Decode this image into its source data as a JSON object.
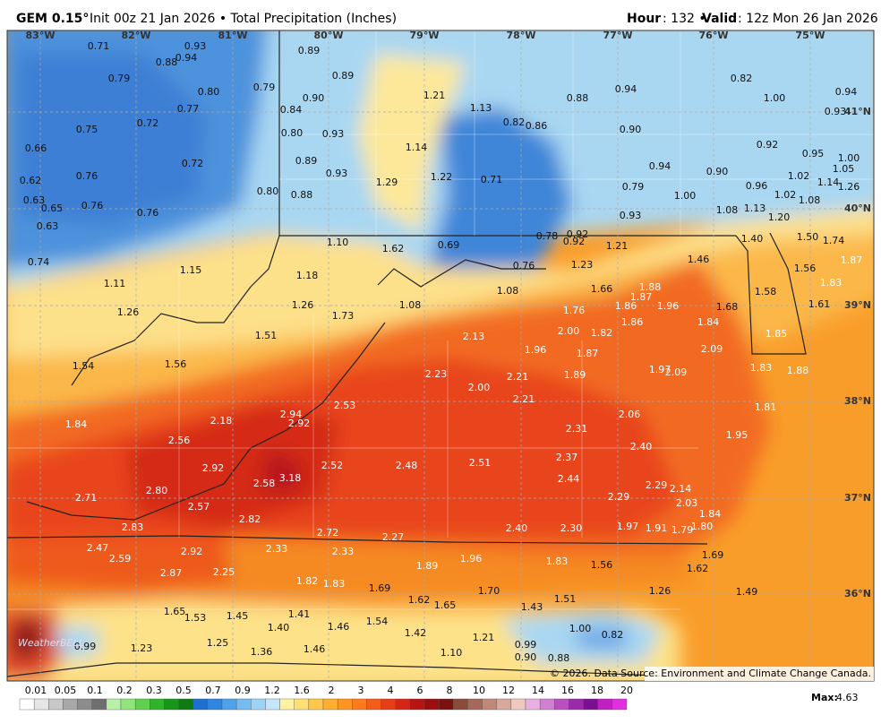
{
  "header": {
    "model": "GEM 0.15°",
    "title": "Init 00z 21 Jan 2026 • Total Precipitation (Inches)",
    "hour_label": "Hour",
    "hour_value": ": 132 •",
    "valid_label": "Valid",
    "valid_value": ": 12z Mon 26 Jan 2026"
  },
  "longitudes": [
    "83°W",
    "82°W",
    "81°W",
    "80°W",
    "79°W",
    "78°W",
    "77°W",
    "76°W",
    "75°W"
  ],
  "latitudes": [
    "41°N",
    "40°N",
    "39°N",
    "38°N",
    "37°N",
    "36°N"
  ],
  "point_labels": [
    "0.71",
    "0.93",
    "0.88",
    "0.94",
    "0.89",
    "0.79",
    "0.89",
    "0.79",
    "0.80",
    "0.77",
    "0.90",
    "0.84",
    "1.21",
    "1.13",
    "0.88",
    "0.94",
    "0.82",
    "1.00",
    "0.94",
    "0.93",
    "0.72",
    "0.75",
    "0.80",
    "0.93",
    "0.82",
    "0.86",
    "0.90",
    "0.66",
    "1.14",
    "0.92",
    "0.95",
    "1.00",
    "0.72",
    "0.89",
    "0.94",
    "0.90",
    "0.62",
    "0.76",
    "0.93",
    "1.29",
    "1.22",
    "0.71",
    "0.79",
    "0.96",
    "1.02",
    "1.05",
    "1.14",
    "1.26",
    "0.63",
    "0.65",
    "0.76",
    "0.80",
    "0.88",
    "1.00",
    "1.02",
    "1.08",
    "0.76",
    "0.93",
    "1.08",
    "1.13",
    "1.20",
    "0.63",
    "0.92",
    "0.78",
    "0.92",
    "1.21",
    "1.40",
    "1.50",
    "1.74",
    "1.10",
    "1.62",
    "0.69",
    "0.74",
    "1.15",
    "1.23",
    "1.46",
    "0.76",
    "1.56",
    "1.87",
    "1.11",
    "1.18",
    "1.08",
    "1.66",
    "1.88",
    "1.87",
    "1.83",
    "1.58",
    "1.26",
    "1.26",
    "1.73",
    "1.08",
    "1.76",
    "1.86",
    "1.96",
    "1.68",
    "1.61",
    "1.86",
    "1.84",
    "1.51",
    "2.13",
    "2.00",
    "1.82",
    "1.85",
    "1.54",
    "1.56",
    "1.96",
    "1.87",
    "2.09",
    "1.97",
    "2.09",
    "1.83",
    "1.88",
    "2.23",
    "2.21",
    "1.89",
    "2.00",
    "2.21",
    "2.53",
    "1.81",
    "2.06",
    "2.94",
    "2.18",
    "2.92",
    "1.84",
    "2.31",
    "1.95",
    "2.56",
    "2.40",
    "2.37",
    "2.92",
    "2.52",
    "2.48",
    "2.51",
    "3.18",
    "2.58",
    "2.44",
    "2.29",
    "2.14",
    "2.80",
    "2.71",
    "2.29",
    "2.03",
    "2.57",
    "1.84",
    "2.82",
    "2.83",
    "2.72",
    "2.40",
    "2.30",
    "1.97",
    "1.91",
    "1.79",
    "1.80",
    "2.27",
    "2.47",
    "2.92",
    "2.33",
    "2.33",
    "1.96",
    "1.83",
    "1.69",
    "2.59",
    "1.89",
    "1.56",
    "1.62",
    "2.87",
    "2.25",
    "1.82",
    "1.83",
    "1.69",
    "1.70",
    "1.51",
    "1.26",
    "1.49",
    "1.62",
    "1.65",
    "1.43",
    "1.65",
    "1.53",
    "1.45",
    "1.41",
    "1.40",
    "1.46",
    "1.54",
    "1.00",
    "0.82",
    "1.42",
    "0.99",
    "1.23",
    "1.25",
    "1.36",
    "1.46",
    "1.21",
    "0.99",
    "1.10",
    "0.90",
    "0.88"
  ],
  "legend": {
    "ticks": [
      0.01,
      0.05,
      0.1,
      0.2,
      0.3,
      0.5,
      0.7,
      0.9,
      1.2,
      1.6,
      2,
      3,
      4,
      6,
      8,
      10,
      12,
      14,
      16,
      18,
      20
    ]
  },
  "max": {
    "label": "Max:",
    "value": "4.63"
  },
  "watermark": "WeatherBELL",
  "copyright": "© 2026. Data Source: Environment and Climate Change Canada."
}
